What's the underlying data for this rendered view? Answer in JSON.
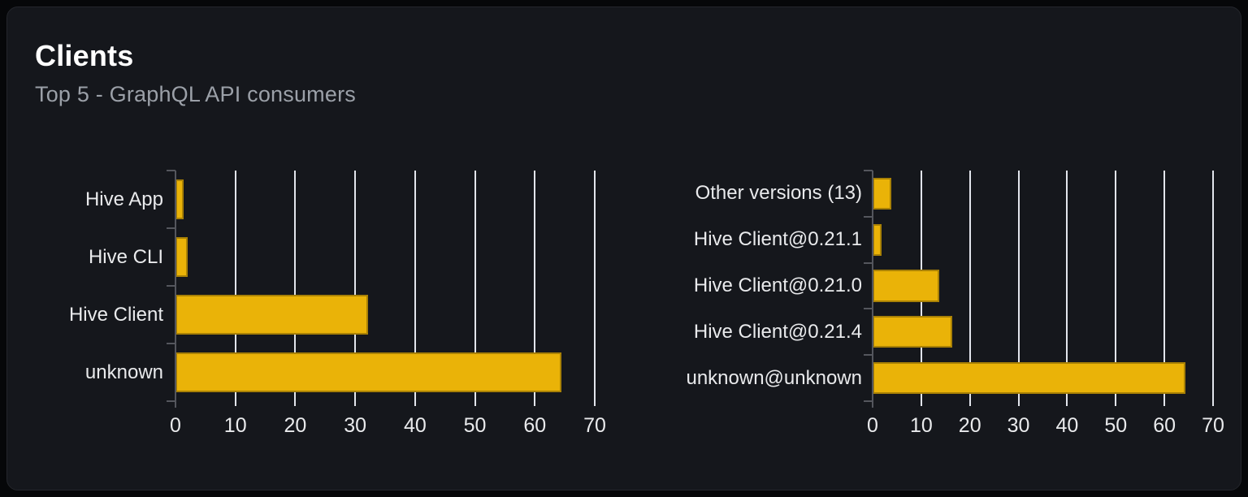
{
  "card": {
    "title": "Clients",
    "subtitle": "Top 5 - GraphQL API consumers"
  },
  "colors": {
    "page_bg": "#060709",
    "card_bg": "#15171c",
    "card_border": "#24262c",
    "title": "#ffffff",
    "subtitle": "#9ba0a8",
    "label": "#e9eaec",
    "grid": "#e2e5ec",
    "axis": "#54565d",
    "bar": "#eab308"
  },
  "chart_data": [
    {
      "type": "bar",
      "orientation": "horizontal",
      "name": "clients-by-name",
      "categories": [
        "Hive App",
        "Hive CLI",
        "Hive Client",
        "unknown"
      ],
      "values": [
        1.4,
        2.0,
        32.1,
        64.4
      ],
      "xlim": [
        0,
        70
      ],
      "xticks": [
        0,
        10,
        20,
        30,
        40,
        50,
        60,
        70
      ],
      "grid": true,
      "legend": false,
      "title": "",
      "xlabel": "",
      "ylabel": ""
    },
    {
      "type": "bar",
      "orientation": "horizontal",
      "name": "clients-by-version",
      "categories": [
        "Other versions (13)",
        "Hive Client@0.21.1",
        "Hive Client@0.21.0",
        "Hive Client@0.21.4",
        "unknown@unknown"
      ],
      "values": [
        3.9,
        1.9,
        13.7,
        16.4,
        64.4
      ],
      "xlim": [
        0,
        70
      ],
      "xticks": [
        0,
        10,
        20,
        30,
        40,
        50,
        60,
        70
      ],
      "grid": true,
      "legend": false,
      "title": "",
      "xlabel": "",
      "ylabel": ""
    }
  ]
}
